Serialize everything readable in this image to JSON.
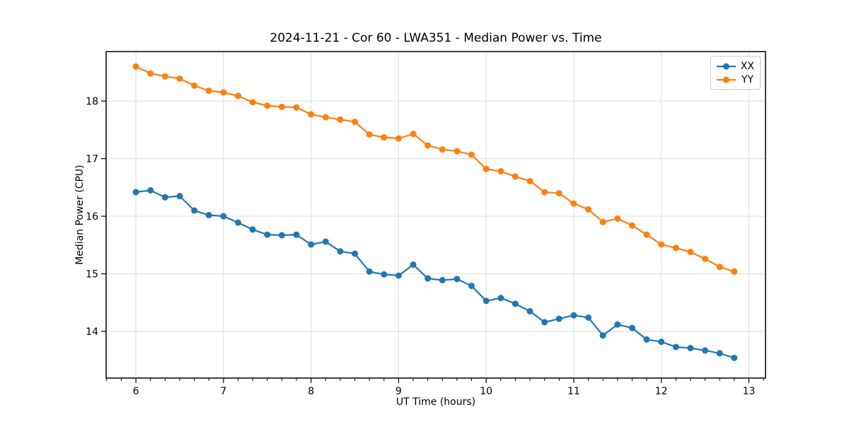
{
  "chart_data": {
    "type": "line",
    "title": "2024-11-21 - Cor 60 - LWA351 - Median Power vs. Time",
    "xlabel": "UT Time (hours)",
    "ylabel": "Median Power (CPU)",
    "xlim": [
      5.66,
      13.19
    ],
    "ylim": [
      13.19,
      18.86
    ],
    "x_ticks": [
      6,
      7,
      8,
      9,
      10,
      11,
      12,
      13
    ],
    "y_ticks": [
      14,
      15,
      16,
      17,
      18
    ],
    "x_minor_step": 0.1667,
    "grid": true,
    "grid_color": "#dcdcdc",
    "legend_position": "upper right",
    "x": [
      6.0,
      6.167,
      6.333,
      6.5,
      6.667,
      6.833,
      7.0,
      7.167,
      7.333,
      7.5,
      7.667,
      7.833,
      8.0,
      8.167,
      8.333,
      8.5,
      8.667,
      8.833,
      9.0,
      9.167,
      9.333,
      9.5,
      9.667,
      9.833,
      10.0,
      10.167,
      10.333,
      10.5,
      10.667,
      10.833,
      11.0,
      11.167,
      11.333,
      11.5,
      11.667,
      11.833,
      12.0,
      12.167,
      12.333,
      12.5,
      12.667,
      12.833
    ],
    "series": [
      {
        "name": "XX",
        "color": "#1f77b4",
        "values": [
          16.42,
          16.45,
          16.33,
          16.35,
          16.1,
          16.02,
          16.0,
          15.89,
          15.77,
          15.68,
          15.67,
          15.68,
          15.51,
          15.56,
          15.39,
          15.35,
          15.04,
          14.99,
          14.97,
          15.16,
          14.92,
          14.89,
          14.91,
          14.79,
          14.53,
          14.58,
          14.48,
          14.35,
          14.16,
          14.22,
          14.28,
          14.24,
          13.93,
          14.12,
          14.06,
          13.86,
          13.82,
          13.73,
          13.71,
          13.67,
          13.62,
          13.54
        ]
      },
      {
        "name": "YY",
        "color": "#ff7f0e",
        "values": [
          18.6,
          18.48,
          18.43,
          18.39,
          18.27,
          18.18,
          18.15,
          18.09,
          17.98,
          17.92,
          17.9,
          17.89,
          17.77,
          17.72,
          17.68,
          17.64,
          17.42,
          17.37,
          17.35,
          17.43,
          17.23,
          17.16,
          17.13,
          17.07,
          16.82,
          16.78,
          16.69,
          16.61,
          16.42,
          16.4,
          16.22,
          16.12,
          15.9,
          15.96,
          15.84,
          15.68,
          15.51,
          15.45,
          15.38,
          15.26,
          15.12,
          15.04
        ]
      }
    ]
  }
}
